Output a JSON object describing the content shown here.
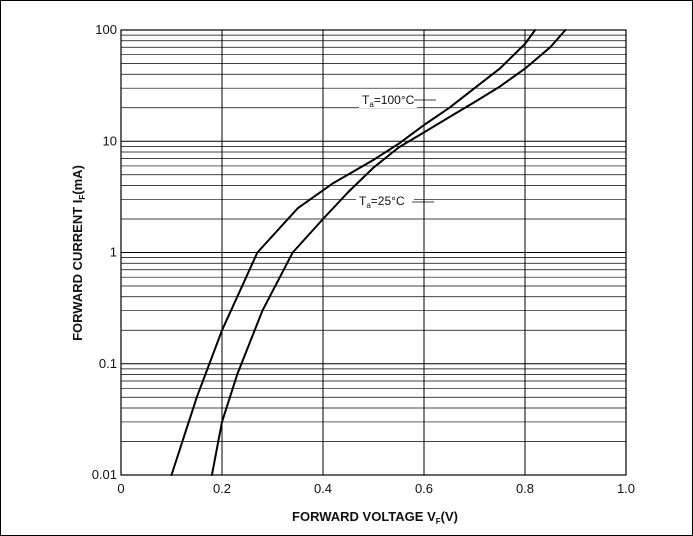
{
  "chart_data": {
    "type": "line",
    "x_scale": "linear",
    "y_scale": "log",
    "xlim": [
      0,
      1.0
    ],
    "ylim": [
      0.01,
      100
    ],
    "grid": true,
    "x_ticks": [
      "0",
      "0.2",
      "0.4",
      "0.6",
      "0.8",
      "1.0"
    ],
    "y_ticks": [
      "0.01",
      "0.1",
      "1",
      "10",
      "100"
    ],
    "xlabel": {
      "main": "FORWARD VOLTAGE  V",
      "sub": "F",
      "unit": "(V)"
    },
    "ylabel": {
      "main": "FORWARD CURRENT  I",
      "sub": "F",
      "unit": "(mA)"
    },
    "series": [
      {
        "name": "Ta=100°C",
        "label": {
          "main": "T",
          "sub": "a",
          "rest": "=100°C"
        },
        "x": [
          0.1,
          0.15,
          0.2,
          0.27,
          0.35,
          0.42,
          0.5,
          0.55,
          0.6,
          0.65,
          0.7,
          0.75,
          0.8,
          0.82
        ],
        "y": [
          0.01,
          0.05,
          0.2,
          1.0,
          2.5,
          4.2,
          6.8,
          9.5,
          14,
          20,
          30,
          45,
          75,
          100
        ]
      },
      {
        "name": "Ta=25°C",
        "label": {
          "main": "T",
          "sub": "a",
          "rest": "=25°C"
        },
        "x": [
          0.18,
          0.2,
          0.23,
          0.28,
          0.34,
          0.4,
          0.45,
          0.5,
          0.55,
          0.6,
          0.65,
          0.7,
          0.75,
          0.8,
          0.85,
          0.88
        ],
        "y": [
          0.01,
          0.03,
          0.08,
          0.3,
          1.0,
          2.0,
          3.5,
          5.8,
          8.8,
          12,
          16.5,
          22.5,
          31,
          45,
          70,
          100
        ]
      }
    ]
  }
}
